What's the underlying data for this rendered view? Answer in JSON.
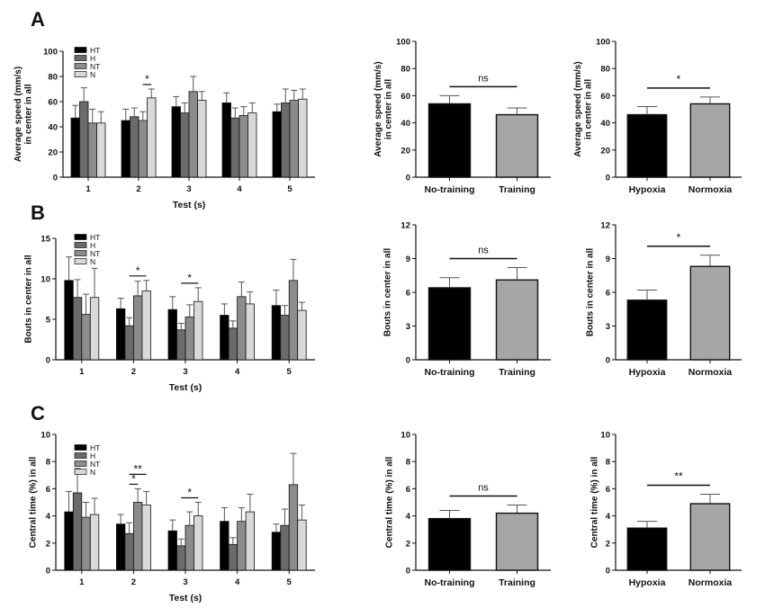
{
  "figure": {
    "panel_letters": [
      "A",
      "B",
      "C"
    ],
    "colors": {
      "HT": "#000000",
      "H": "#6b6b6b",
      "NT": "#8c8c8c",
      "N": "#d9d9d9",
      "No-training": "#000000",
      "Training": "#a6a6a6",
      "Hypoxia": "#000000",
      "Normoxia": "#a6a6a6"
    }
  },
  "chart_data": [
    {
      "id": "A1",
      "type": "bar",
      "panel": "A",
      "ylabel": "Average speed (mm/s)\nin center in all",
      "xlabel": "Test (s)",
      "categories": [
        "1",
        "2",
        "3",
        "4",
        "5"
      ],
      "ylim": [
        0,
        100
      ],
      "yticks": [
        0,
        20,
        40,
        60,
        80,
        100
      ],
      "legend": [
        "HT",
        "H",
        "NT",
        "N"
      ],
      "series": [
        {
          "name": "HT",
          "values": [
            47,
            45,
            56,
            59,
            52
          ],
          "errors": [
            10,
            9,
            8,
            8,
            6
          ]
        },
        {
          "name": "H",
          "values": [
            60,
            48,
            51,
            47,
            59
          ],
          "errors": [
            11,
            7,
            8,
            8,
            11
          ]
        },
        {
          "name": "NT",
          "values": [
            43,
            45,
            68,
            49,
            61
          ],
          "errors": [
            11,
            7,
            12,
            7,
            8
          ]
        },
        {
          "name": "N",
          "values": [
            43,
            63,
            61,
            51,
            62
          ],
          "errors": [
            9,
            7,
            7,
            8,
            8
          ]
        }
      ],
      "sig": [
        {
          "label": "*",
          "cat": 1,
          "from": 2,
          "to": 3
        }
      ]
    },
    {
      "id": "A2",
      "type": "bar",
      "panel": "A",
      "ylabel": "Average speed (mm/s)\nin center in all",
      "categories": [
        "No-training",
        "Training"
      ],
      "ylim": [
        0,
        100
      ],
      "yticks": [
        0,
        20,
        40,
        60,
        80,
        100
      ],
      "values": [
        54,
        46
      ],
      "errors": [
        6,
        5
      ],
      "sig": [
        {
          "label": "ns"
        }
      ]
    },
    {
      "id": "A3",
      "type": "bar",
      "panel": "A",
      "ylabel": "Average speed (mm/s)\nin center in all",
      "categories": [
        "Hypoxia",
        "Normoxia"
      ],
      "ylim": [
        0,
        100
      ],
      "yticks": [
        0,
        20,
        40,
        60,
        80,
        100
      ],
      "values": [
        46,
        54
      ],
      "errors": [
        6,
        5
      ],
      "sig": [
        {
          "label": "*"
        }
      ]
    },
    {
      "id": "B1",
      "type": "bar",
      "panel": "B",
      "ylabel": "Bouts in center in all",
      "xlabel": "Test (s)",
      "categories": [
        "1",
        "2",
        "3",
        "4",
        "5"
      ],
      "ylim": [
        0,
        15
      ],
      "yticks": [
        0,
        5,
        10,
        15
      ],
      "legend": [
        "HT",
        "H",
        "NT",
        "N"
      ],
      "series": [
        {
          "name": "HT",
          "values": [
            9.8,
            6.3,
            6.2,
            5.5,
            6.7
          ],
          "errors": [
            2.9,
            1.3,
            1.6,
            1.4,
            1.9
          ]
        },
        {
          "name": "H",
          "values": [
            7.7,
            4.2,
            3.7,
            3.9,
            5.5
          ],
          "errors": [
            2.2,
            1.0,
            0.8,
            0.9,
            1.2
          ]
        },
        {
          "name": "NT",
          "values": [
            5.6,
            7.9,
            5.3,
            7.8,
            9.8
          ],
          "errors": [
            2.5,
            1.8,
            1.5,
            1.8,
            2.6
          ]
        },
        {
          "name": "N",
          "values": [
            7.7,
            8.5,
            7.2,
            6.9,
            6.1
          ],
          "errors": [
            3.6,
            1.3,
            1.7,
            1.5,
            1.0
          ]
        }
      ],
      "sig": [
        {
          "label": "*",
          "cat": 1,
          "from": 1,
          "to": 3
        },
        {
          "label": "*",
          "cat": 2,
          "from": 1,
          "to": 3
        }
      ]
    },
    {
      "id": "B2",
      "type": "bar",
      "panel": "B",
      "ylabel": "Bouts in center in all",
      "categories": [
        "No-training",
        "Training"
      ],
      "ylim": [
        0,
        12
      ],
      "yticks": [
        0,
        3,
        6,
        9,
        12
      ],
      "values": [
        6.4,
        7.1
      ],
      "errors": [
        0.9,
        1.1
      ],
      "sig": [
        {
          "label": "ns"
        }
      ]
    },
    {
      "id": "B3",
      "type": "bar",
      "panel": "B",
      "ylabel": "Bouts in center in all",
      "categories": [
        "Hypoxia",
        "Normoxia"
      ],
      "ylim": [
        0,
        12
      ],
      "yticks": [
        0,
        3,
        6,
        9,
        12
      ],
      "values": [
        5.3,
        8.3
      ],
      "errors": [
        0.9,
        1.0
      ],
      "sig": [
        {
          "label": "*"
        }
      ]
    },
    {
      "id": "C1",
      "type": "bar",
      "panel": "C",
      "ylabel": "Central time (%) in all",
      "xlabel": "Test (s)",
      "categories": [
        "1",
        "2",
        "3",
        "4",
        "5"
      ],
      "ylim": [
        0,
        10
      ],
      "yticks": [
        0,
        2,
        4,
        6,
        8,
        10
      ],
      "legend": [
        "HT",
        "H",
        "NT",
        "N"
      ],
      "series": [
        {
          "name": "HT",
          "values": [
            4.3,
            3.4,
            2.9,
            3.6,
            2.8
          ],
          "errors": [
            1.5,
            0.7,
            0.8,
            1.0,
            0.6
          ]
        },
        {
          "name": "H",
          "values": [
            5.7,
            2.7,
            1.8,
            1.9,
            3.3
          ],
          "errors": [
            1.8,
            0.8,
            0.5,
            0.5,
            1.2
          ]
        },
        {
          "name": "NT",
          "values": [
            3.9,
            5.0,
            3.3,
            3.6,
            6.3
          ],
          "errors": [
            1.1,
            1.0,
            1.0,
            1.0,
            2.3
          ]
        },
        {
          "name": "N",
          "values": [
            4.1,
            4.8,
            4.0,
            4.3,
            3.7
          ],
          "errors": [
            1.2,
            1.0,
            1.0,
            1.3,
            1.1
          ]
        }
      ],
      "sig": [
        {
          "label": "*",
          "cat": 1,
          "from": 1,
          "to": 2
        },
        {
          "label": "**",
          "cat": 1,
          "from": 1,
          "to": 3
        },
        {
          "label": "*",
          "cat": 2,
          "from": 1,
          "to": 3
        }
      ]
    },
    {
      "id": "C2",
      "type": "bar",
      "panel": "C",
      "ylabel": "Central time (%) in all",
      "categories": [
        "No-training",
        "Training"
      ],
      "ylim": [
        0,
        10
      ],
      "yticks": [
        0,
        2,
        4,
        6,
        8,
        10
      ],
      "values": [
        3.8,
        4.2
      ],
      "errors": [
        0.6,
        0.6
      ],
      "sig": [
        {
          "label": "ns"
        }
      ]
    },
    {
      "id": "C3",
      "type": "bar",
      "panel": "C",
      "ylabel": "Central time (%) in all",
      "categories": [
        "Hypoxia",
        "Normoxia"
      ],
      "ylim": [
        0,
        10
      ],
      "yticks": [
        0,
        2,
        4,
        6,
        8,
        10
      ],
      "values": [
        3.1,
        4.9
      ],
      "errors": [
        0.5,
        0.7
      ],
      "sig": [
        {
          "label": "**"
        }
      ]
    }
  ]
}
